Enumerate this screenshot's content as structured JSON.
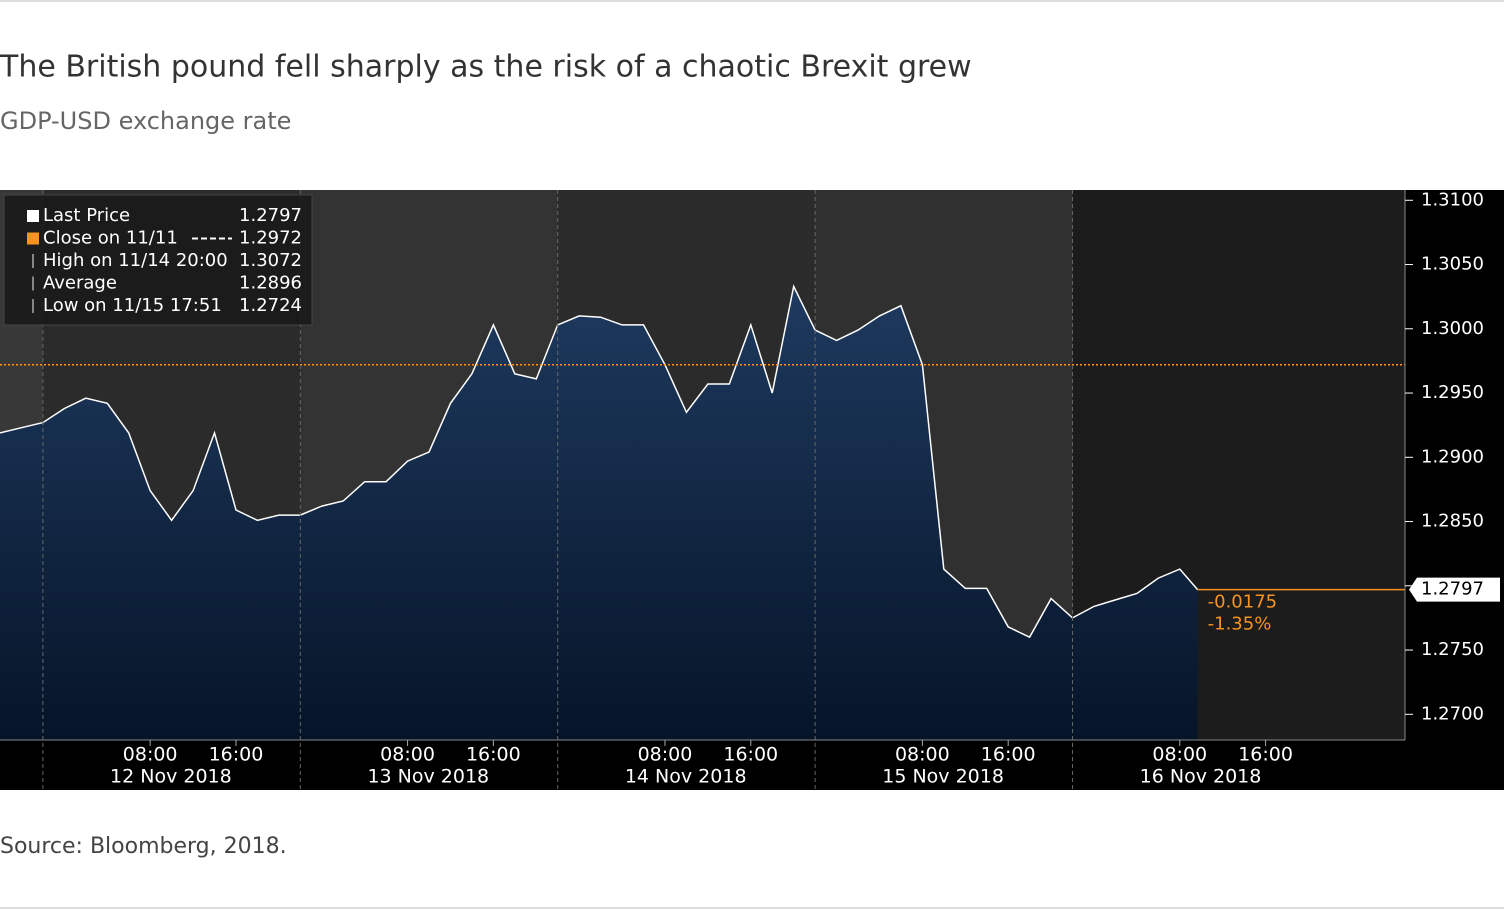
{
  "chart_data": {
    "type": "area",
    "title": "The British pound fell sharply as the risk of a chaotic Brexit grew",
    "subtitle": "GDP-USD exchange rate",
    "source": "Source: Bloomberg, 2018.",
    "color": "#1e3a5f",
    "line_color": "#ffffff",
    "x": [
      "2018-11-11 18:00",
      "2018-11-11 20:00",
      "2018-11-11 22:00",
      "2018-11-12 00:00",
      "2018-11-12 02:00",
      "2018-11-12 04:00",
      "2018-11-12 06:00",
      "2018-11-12 08:00",
      "2018-11-12 10:00",
      "2018-11-12 12:00",
      "2018-11-12 14:00",
      "2018-11-12 16:00",
      "2018-11-12 18:00",
      "2018-11-12 20:00",
      "2018-11-12 22:00",
      "2018-11-13 00:00",
      "2018-11-13 02:00",
      "2018-11-13 04:00",
      "2018-11-13 06:00",
      "2018-11-13 08:00",
      "2018-11-13 10:00",
      "2018-11-13 12:00",
      "2018-11-13 14:00",
      "2018-11-13 16:00",
      "2018-11-13 18:00",
      "2018-11-13 20:00",
      "2018-11-13 22:00",
      "2018-11-14 00:00",
      "2018-11-14 02:00",
      "2018-11-14 04:00",
      "2018-11-14 06:00",
      "2018-11-14 08:00",
      "2018-11-14 10:00",
      "2018-11-14 12:00",
      "2018-11-14 14:00",
      "2018-11-14 16:00",
      "2018-11-14 18:00",
      "2018-11-14 20:00",
      "2018-11-14 22:00",
      "2018-11-15 00:00",
      "2018-11-15 02:00",
      "2018-11-15 04:00",
      "2018-11-15 06:00",
      "2018-11-15 08:00",
      "2018-11-15 10:00",
      "2018-11-15 12:00",
      "2018-11-15 14:00",
      "2018-11-15 16:00",
      "2018-11-15 18:00",
      "2018-11-15 20:00",
      "2018-11-15 22:00",
      "2018-11-16 00:00",
      "2018-11-16 02:00",
      "2018-11-16 04:00",
      "2018-11-16 06:00",
      "2018-11-16 08:00",
      "2018-11-16 09:40"
    ],
    "values": [
      1.2919,
      1.2923,
      1.2927,
      1.2938,
      1.2946,
      1.2942,
      1.2919,
      1.2874,
      1.2851,
      1.2874,
      1.2919,
      1.2859,
      1.2851,
      1.2855,
      1.2855,
      1.2862,
      1.2866,
      1.2881,
      1.2881,
      1.2897,
      1.2904,
      1.2942,
      1.2965,
      1.3003,
      1.2965,
      1.2961,
      1.3003,
      1.301,
      1.3009,
      1.3003,
      1.3003,
      1.2972,
      1.2935,
      1.2957,
      1.2957,
      1.3003,
      1.295,
      1.3033,
      1.2999,
      1.2991,
      1.2999,
      1.301,
      1.3018,
      1.2972,
      1.2813,
      1.2798,
      1.2798,
      1.2768,
      1.276,
      1.279,
      1.2775,
      1.2784,
      1.2789,
      1.2794,
      1.2806,
      1.2813,
      1.2797
    ],
    "xlim": [
      "2018-11-11 18:00",
      "2018-11-17 05:00"
    ],
    "xticks": [
      {
        "value": "2018-11-12 08:00",
        "label": "08:00"
      },
      {
        "value": "2018-11-12 16:00",
        "label": "16:00"
      },
      {
        "value": "2018-11-13 08:00",
        "label": "08:00"
      },
      {
        "value": "2018-11-13 16:00",
        "label": "16:00"
      },
      {
        "value": "2018-11-14 08:00",
        "label": "08:00"
      },
      {
        "value": "2018-11-14 16:00",
        "label": "16:00"
      },
      {
        "value": "2018-11-15 08:00",
        "label": "08:00"
      },
      {
        "value": "2018-11-15 16:00",
        "label": "16:00"
      },
      {
        "value": "2018-11-16 08:00",
        "label": "08:00"
      },
      {
        "value": "2018-11-16 16:00",
        "label": "16:00"
      }
    ],
    "sessions": [
      {
        "value": "2018-11-11 22:00",
        "label": "12 Nov 2018"
      },
      {
        "value": "2018-11-12 22:00",
        "label": "13 Nov 2018"
      },
      {
        "value": "2018-11-13 22:00",
        "label": "14 Nov 2018"
      },
      {
        "value": "2018-11-14 22:00",
        "label": "15 Nov 2018"
      },
      {
        "value": "2018-11-15 22:00",
        "label": "16 Nov 2018"
      }
    ],
    "ylim": [
      1.268,
      1.3108
    ],
    "yticks": [
      {
        "value": 1.27,
        "label": "1.2700"
      },
      {
        "value": 1.275,
        "label": "1.2750"
      },
      {
        "value": 1.28,
        "label": "1.2800"
      },
      {
        "value": 1.285,
        "label": "1.2850"
      },
      {
        "value": 1.29,
        "label": "1.2900"
      },
      {
        "value": 1.295,
        "label": "1.2950"
      },
      {
        "value": 1.3,
        "label": "1.3000"
      },
      {
        "value": 1.305,
        "label": "1.3050"
      },
      {
        "value": 1.31,
        "label": "1.3100"
      }
    ],
    "legend": [
      {
        "name": "Last Price",
        "value": 1.2797,
        "color": "#ffffff"
      },
      {
        "name": "Close on 11/11",
        "value": 1.2972,
        "color": "#f7931e"
      },
      {
        "name": "High on 11/14 20:00",
        "value": 1.3072,
        "color": "#aaaaaa"
      },
      {
        "name": "Average",
        "value": 1.2896,
        "color": "#aaaaaa"
      },
      {
        "name": "Low on 11/15 17:51",
        "value": 1.2724,
        "color": "#aaaaaa"
      }
    ],
    "change": -0.0175,
    "change_pct": {
      "value": -1.35,
      "label": "-1.35%"
    }
  }
}
